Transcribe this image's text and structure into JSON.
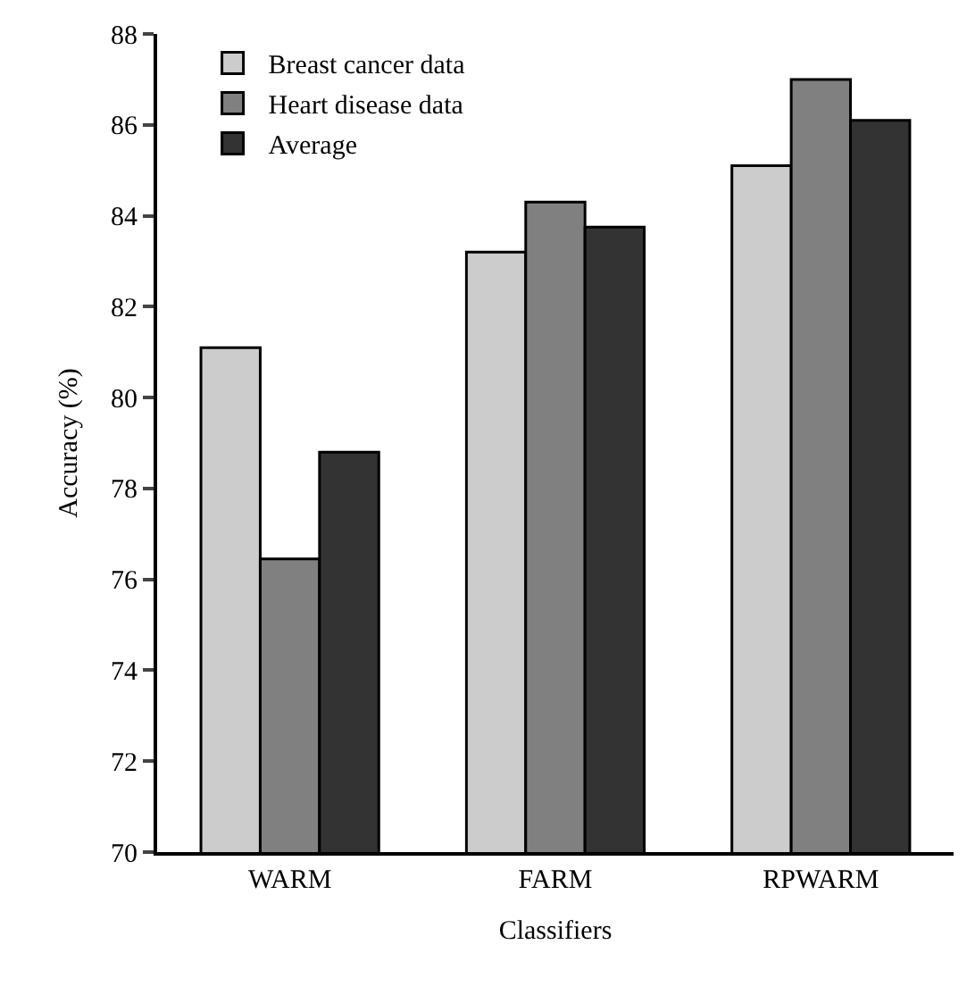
{
  "chart_data": {
    "type": "bar",
    "xlabel": "Classifiers",
    "ylabel": "Accuracy (%)",
    "categories": [
      "WARM",
      "FARM",
      "RPWARM"
    ],
    "series": [
      {
        "name": "Breast cancer data",
        "color": "#cccccc",
        "values": [
          81.1,
          83.2,
          85.1
        ]
      },
      {
        "name": "Heart disease data",
        "color": "#808080",
        "values": [
          76.45,
          84.3,
          87.0
        ]
      },
      {
        "name": "Average",
        "color": "#333333",
        "values": [
          78.8,
          83.75,
          86.1
        ]
      }
    ],
    "ylim": [
      70,
      88
    ],
    "yticks": [
      70,
      72,
      74,
      76,
      78,
      80,
      82,
      84,
      86,
      88
    ],
    "legend": "top left"
  }
}
